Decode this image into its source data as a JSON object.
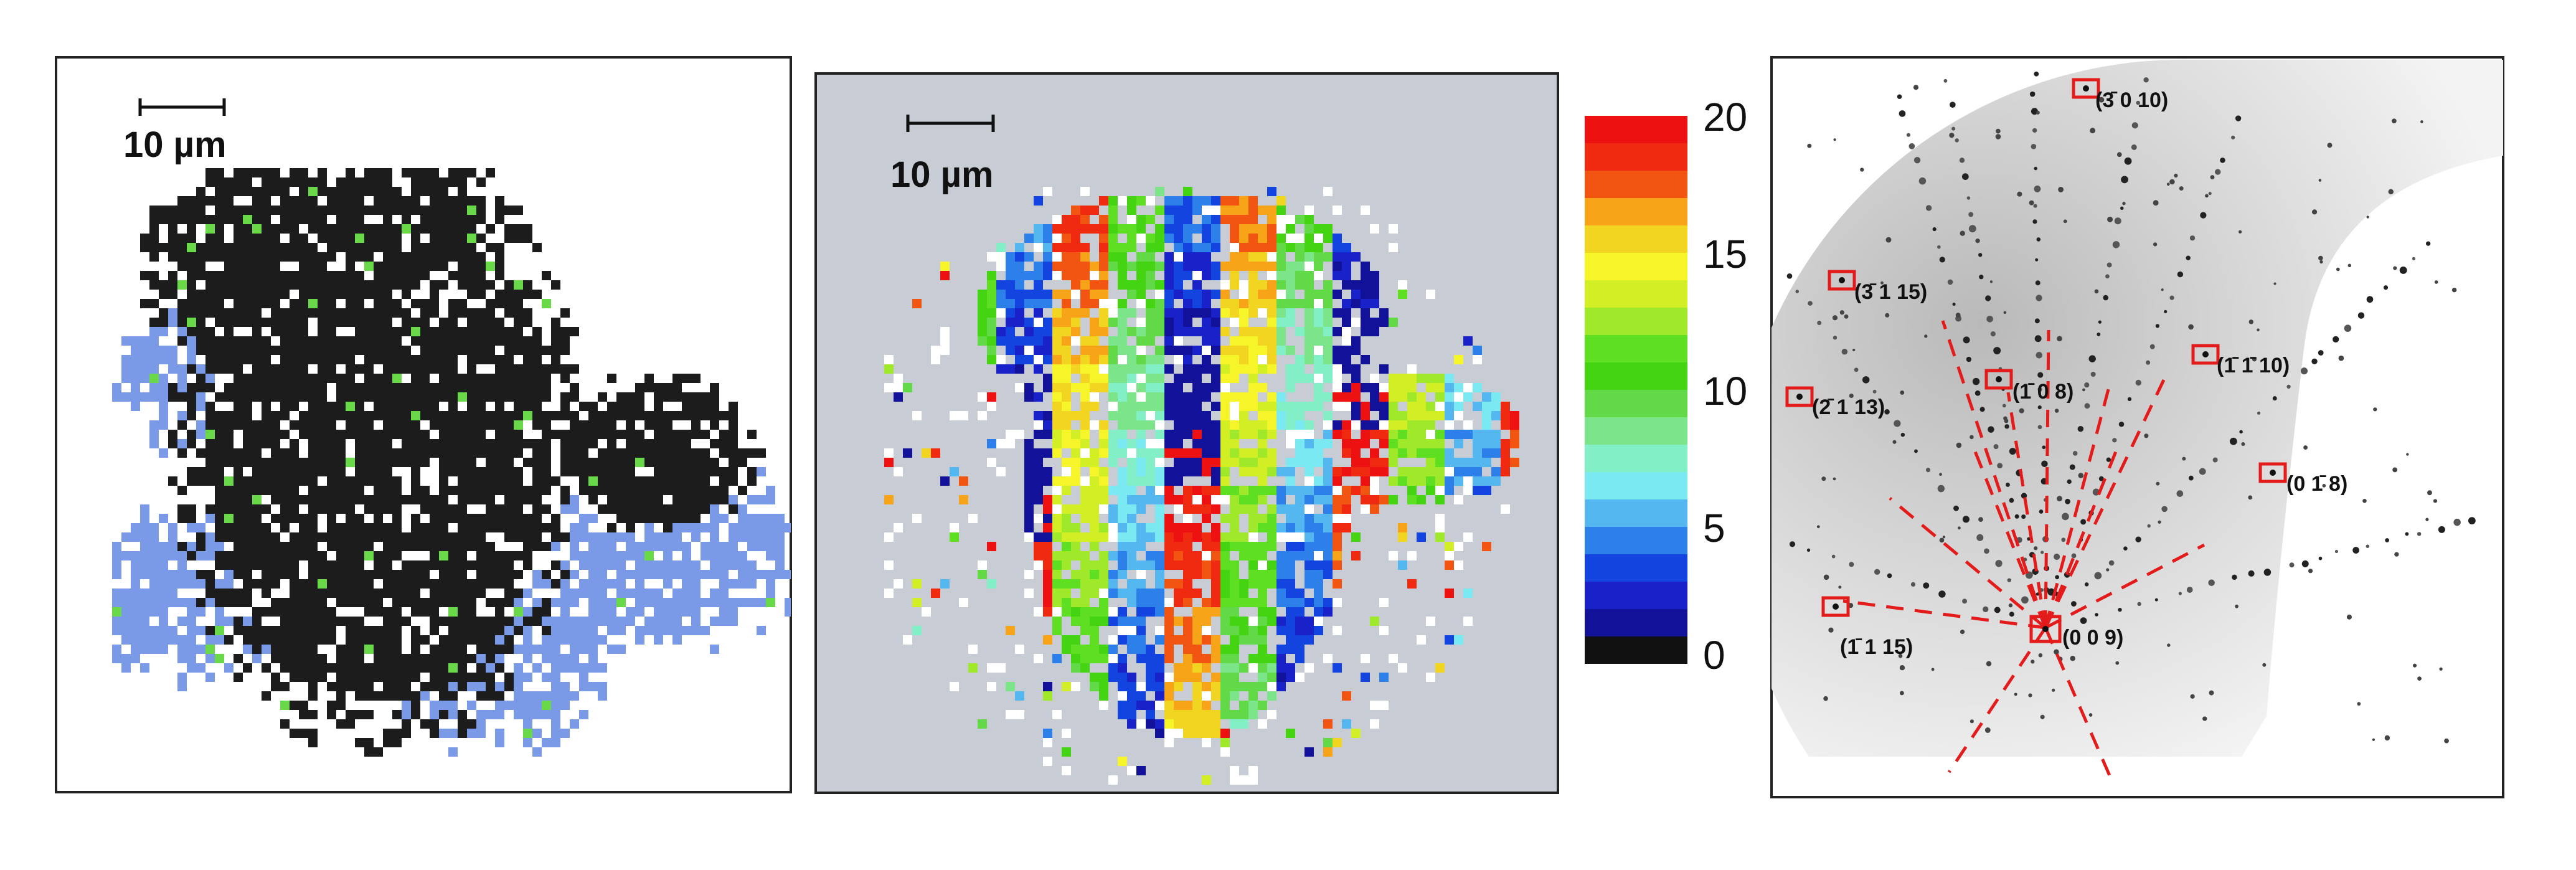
{
  "panels": {
    "a": {
      "scale_bar": "10 µm",
      "phase_colors": {
        "black": "#1c1c1c",
        "blue": "#7a9ae8",
        "green": "#69d94a"
      }
    },
    "b": {
      "scale_bar": "10 µm",
      "background": "#c8ccd4"
    },
    "colorbar": {
      "ticks": [
        "20",
        "15",
        "10",
        "5",
        "0"
      ],
      "colors": [
        "#ee1111",
        "#f02a10",
        "#f25512",
        "#f7a418",
        "#f2d521",
        "#f5f52a",
        "#d2ef25",
        "#9fe82a",
        "#5fdf22",
        "#45d411",
        "#62d947",
        "#7ce489",
        "#83efc7",
        "#7ae9f2",
        "#55b7f0",
        "#2d80ea",
        "#1444e0",
        "#1822c8",
        "#111199",
        "#111111"
      ]
    },
    "c": {
      "reflections": [
        {
          "label": "(3̄ 0 10)"
        },
        {
          "label": "(3̄ 1 15)"
        },
        {
          "label": "(1̄ 1̄ 10)"
        },
        {
          "label": "(2̄ 1 13)"
        },
        {
          "label": "(1̄ 0 8)"
        },
        {
          "label": "(0 1̄ 8)"
        },
        {
          "label": "(1̄ 1 15)"
        },
        {
          "label": "(0 0 9)"
        }
      ]
    }
  }
}
